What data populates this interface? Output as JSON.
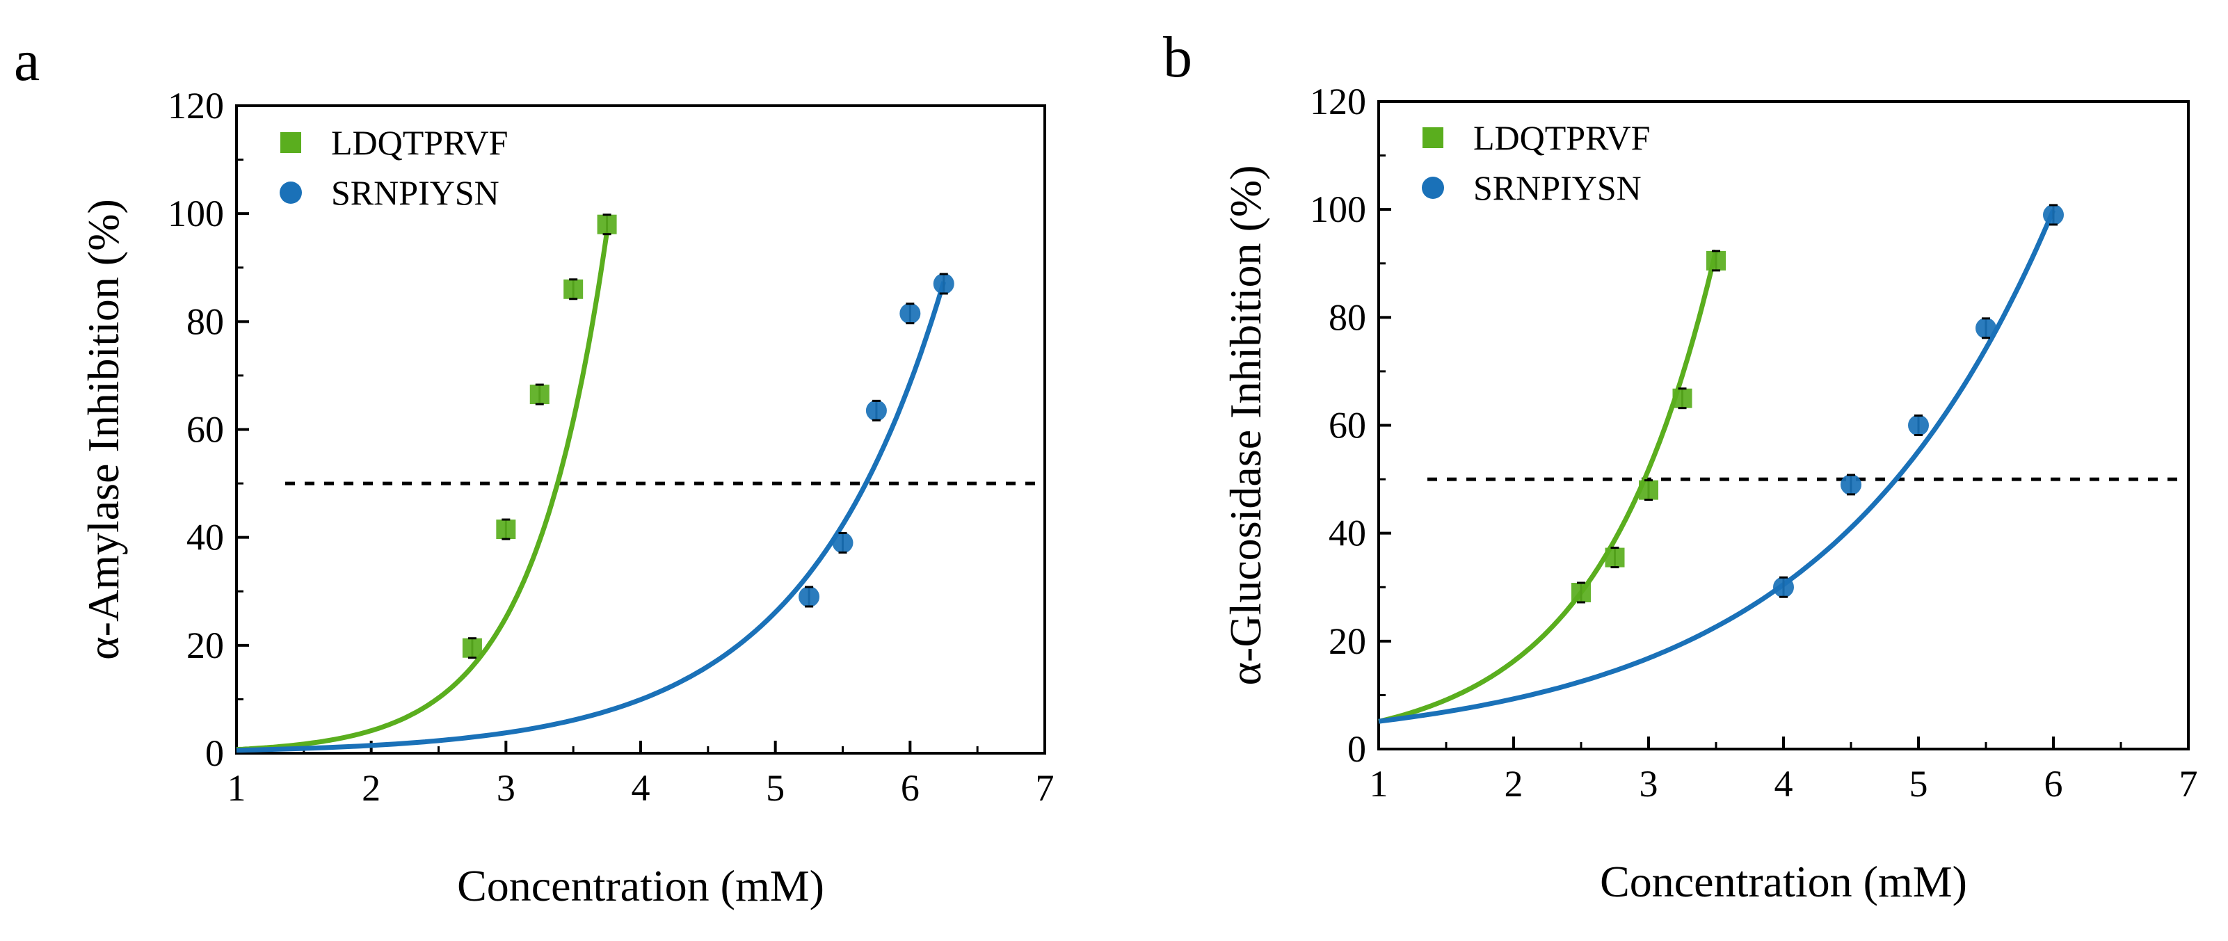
{
  "chart_data": [
    {
      "panel_label": "a",
      "type": "scatter",
      "xlabel": "Concentration (mM)",
      "ylabel": "α-Amylase Inhibition (%)",
      "xlim": [
        1,
        7
      ],
      "ylim": [
        0,
        120
      ],
      "xticks": [
        "1",
        "2",
        "3",
        "4",
        "5",
        "6",
        "7"
      ],
      "yticks": [
        "0",
        "20",
        "40",
        "60",
        "80",
        "100",
        "120"
      ],
      "reference_line_y": 50,
      "legend_position": "top-left",
      "series": [
        {
          "name": "LDQTPRVF",
          "color": "#5aae1e",
          "marker": "square",
          "x": [
            2.75,
            3.0,
            3.25,
            3.5,
            3.75
          ],
          "y": [
            19.5,
            41.5,
            66.5,
            86.0,
            98.0
          ],
          "fit": {
            "a": 0.1153,
            "b": 1.795,
            "x_range": [
              1,
              3.75
            ]
          }
        },
        {
          "name": "SRNPIYSN",
          "color": "#1a71b8",
          "marker": "circle",
          "x": [
            5.25,
            5.5,
            5.75,
            6.0,
            6.25
          ],
          "y": [
            29.0,
            39.0,
            63.5,
            81.5,
            87.0
          ],
          "fit": {
            "a": 0.2087,
            "b": 0.9659,
            "x_range": [
              1,
              6.25
            ]
          }
        }
      ]
    },
    {
      "panel_label": "b",
      "type": "scatter",
      "xlabel": "Concentration (mM)",
      "ylabel": "α-Glucosidase Inhibition (%)",
      "xlim": [
        1,
        7
      ],
      "ylim": [
        0,
        120
      ],
      "xticks": [
        "1",
        "2",
        "3",
        "4",
        "5",
        "6",
        "7"
      ],
      "yticks": [
        "0",
        "20",
        "40",
        "60",
        "80",
        "100",
        "120"
      ],
      "reference_line_y": 50,
      "legend_position": "top-left",
      "series": [
        {
          "name": "LDQTPRVF",
          "color": "#5aae1e",
          "marker": "square",
          "x": [
            2.5,
            2.75,
            3.0,
            3.25,
            3.5
          ],
          "y": [
            29.0,
            35.5,
            48.0,
            65.0,
            90.5
          ],
          "fit": {
            "a": 1.602,
            "b": 1.1588,
            "x_range": [
              1,
              3.5
            ]
          }
        },
        {
          "name": "SRNPIYSN",
          "color": "#1a71b8",
          "marker": "circle",
          "x": [
            4.0,
            4.5,
            5.0,
            5.5,
            6.0
          ],
          "y": [
            30.0,
            49.0,
            60.0,
            78.0,
            99.0
          ],
          "fit": {
            "a": 2.838,
            "b": 0.5935,
            "x_range": [
              1,
              6.0
            ]
          }
        }
      ]
    }
  ]
}
